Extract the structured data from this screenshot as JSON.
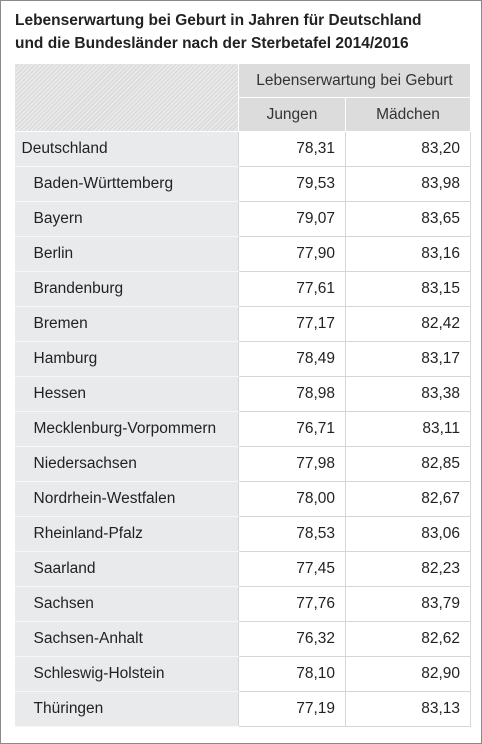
{
  "title_line1": "Lebenserwartung bei Geburt in Jahren für Deutschland",
  "title_line2": "und die Bundesländer nach der Sterbetafel 2014/2016",
  "header": {
    "group": "Lebenserwartung bei Geburt",
    "col_boys": "Jungen",
    "col_girls": "Mädchen"
  },
  "rows": [
    {
      "name": "Deutschland",
      "boys": "78,31",
      "girls": "83,20"
    },
    {
      "name": "Baden-Württemberg",
      "boys": "79,53",
      "girls": "83,98"
    },
    {
      "name": "Bayern",
      "boys": "79,07",
      "girls": "83,65"
    },
    {
      "name": "Berlin",
      "boys": "77,90",
      "girls": "83,16"
    },
    {
      "name": "Brandenburg",
      "boys": "77,61",
      "girls": "83,15"
    },
    {
      "name": "Bremen",
      "boys": "77,17",
      "girls": "82,42"
    },
    {
      "name": "Hamburg",
      "boys": "78,49",
      "girls": "83,17"
    },
    {
      "name": "Hessen",
      "boys": "78,98",
      "girls": "83,38"
    },
    {
      "name": "Mecklenburg-Vorpommern",
      "boys": "76,71",
      "girls": "83,11"
    },
    {
      "name": "Niedersachsen",
      "boys": "77,98",
      "girls": "82,85"
    },
    {
      "name": "Nordrhein-Westfalen",
      "boys": "78,00",
      "girls": "82,67"
    },
    {
      "name": "Rheinland-Pfalz",
      "boys": "78,53",
      "girls": "83,06"
    },
    {
      "name": "Saarland",
      "boys": "77,45",
      "girls": "82,23"
    },
    {
      "name": "Sachsen",
      "boys": "77,76",
      "girls": "83,79"
    },
    {
      "name": "Sachsen-Anhalt",
      "boys": "76,32",
      "girls": "82,62"
    },
    {
      "name": "Schleswig-Holstein",
      "boys": "78,10",
      "girls": "82,90"
    },
    {
      "name": "Thüringen",
      "boys": "77,19",
      "girls": "83,13"
    }
  ]
}
